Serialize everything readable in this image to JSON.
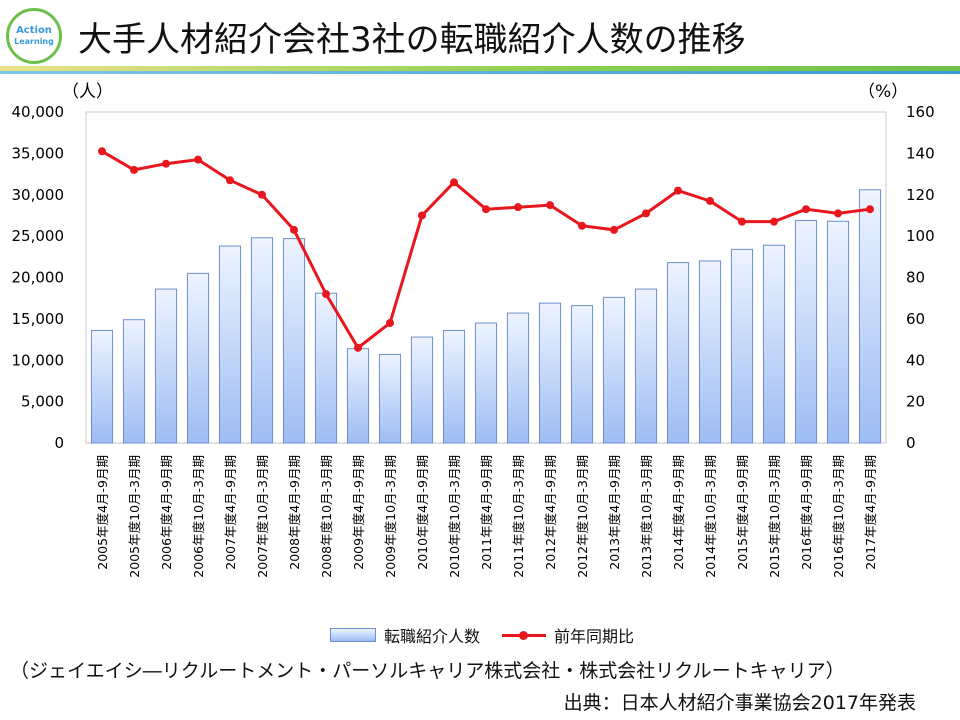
{
  "header": {
    "title": "大手人材紹介会社3社の転職紹介人数の推移",
    "logo_line1": "Action",
    "logo_line2": "Learning"
  },
  "colors": {
    "bar_top": "#eef4ff",
    "bar_bottom": "#9dbcf3",
    "bar_border": "#6c8fd0",
    "line": "#e8161d",
    "accent_green": "#6cc04a",
    "accent_blue": "#3a9ad9"
  },
  "chart_data": {
    "type": "bar+line",
    "categories": [
      "2005年度4月-9月期",
      "2005年度10月-3月期",
      "2006年度4月-9月期",
      "2006年度10月-3月期",
      "2007年度4月-9月期",
      "2007年度10月-3月期",
      "2008年度4月-9月期",
      "2008年度10月-3月期",
      "2009年度4月-9月期",
      "2009年度10月-3月期",
      "2010年度4月-9月期",
      "2010年度10月-3月期",
      "2011年度4月-9月期",
      "2011年度10月-3月期",
      "2012年度4月-9月期",
      "2012年度10月-3月期",
      "2013年度4月-9月期",
      "2013年度10月-3月期",
      "2014年度4月-9月期",
      "2014年度10月-3月期",
      "2015年度4月-9月期",
      "2015年度10月-3月期",
      "2016年度4月-9月期",
      "2016年度10月-3月期",
      "2017年度4月-9月期"
    ],
    "series": [
      {
        "name": "転職紹介人数",
        "type": "bar",
        "axis": "left",
        "values": [
          13600,
          14900,
          18600,
          20500,
          23800,
          24800,
          24700,
          18100,
          11400,
          10700,
          12800,
          13600,
          14500,
          15700,
          16900,
          16600,
          17600,
          18600,
          21800,
          22000,
          23400,
          23900,
          26900,
          26800,
          30600
        ]
      },
      {
        "name": "前年同期比",
        "type": "line",
        "axis": "right",
        "values": [
          141,
          132,
          135,
          137,
          127,
          120,
          103,
          72,
          46,
          58,
          110,
          126,
          113,
          114,
          115,
          105,
          103,
          111,
          122,
          117,
          107,
          107,
          113,
          111,
          113
        ]
      }
    ],
    "ylabel_left": "（人）",
    "ylabel_right": "（%）",
    "ylim_left": [
      0,
      40000
    ],
    "ylim_right": [
      0,
      160
    ],
    "yticks_left": [
      "0",
      "5,000",
      "10,000",
      "15,000",
      "20,000",
      "25,000",
      "30,000",
      "35,000",
      "40,000"
    ],
    "yticks_right": [
      "0",
      "20",
      "40",
      "60",
      "80",
      "100",
      "120",
      "140",
      "160"
    ],
    "grid": false,
    "legend_position": "bottom"
  },
  "footer": {
    "note": "（ジェイエイシ―リクルートメント・パーソルキャリア株式会社・株式会社リクルートキャリア）",
    "source": "出典：日本人材紹介事業協会2017年発表"
  }
}
